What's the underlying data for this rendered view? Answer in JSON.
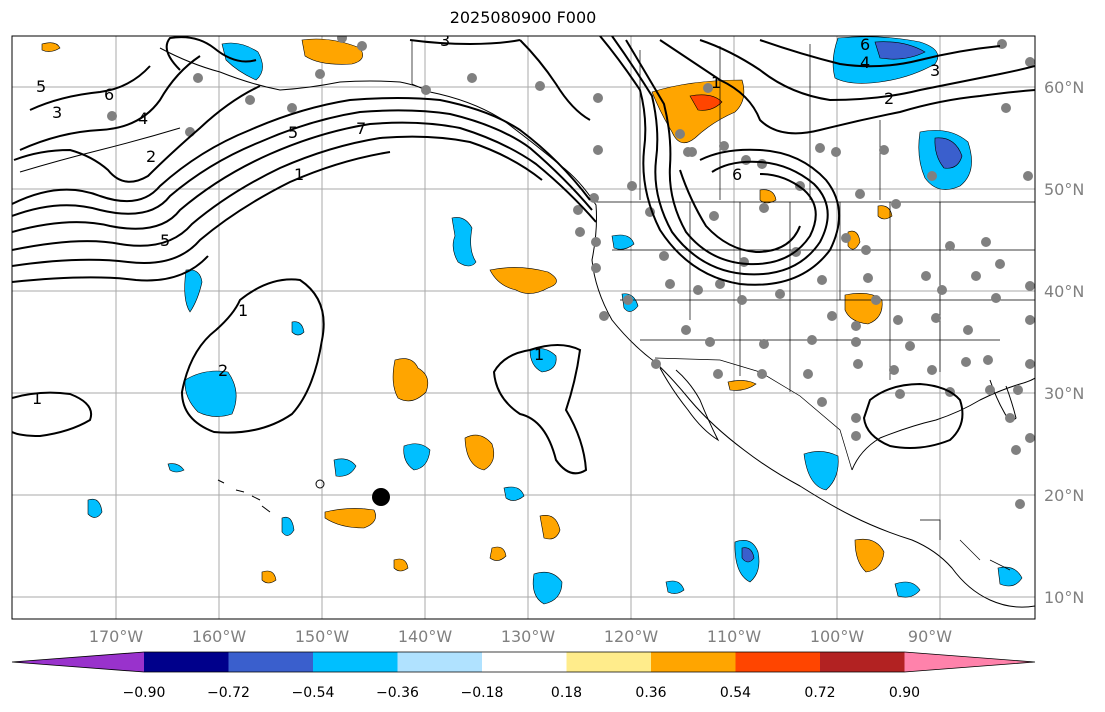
{
  "title": "2025080900 F000",
  "lon_labels": [
    "170°W",
    "160°W",
    "150°W",
    "140°W",
    "130°W",
    "120°W",
    "110°W",
    "100°W",
    "90°W"
  ],
  "lat_labels": [
    "60°N",
    "50°N",
    "40°N",
    "30°N",
    "20°N",
    "10°N"
  ],
  "colorbar": {
    "ticks": [
      "−0.90",
      "−0.72",
      "−0.54",
      "−0.36",
      "−0.18",
      "0.18",
      "0.36",
      "0.54",
      "0.72",
      "0.90"
    ],
    "colors": [
      "#9932cc",
      "#00008b",
      "#3a5fcd",
      "#00bfff",
      "#b0e2ff",
      "#ffffff",
      "#ffec8b",
      "#ffa500",
      "#ff4500",
      "#b22222",
      "#ff82ab"
    ]
  },
  "contours": [
    {
      "label": "5"
    },
    {
      "label": "3"
    },
    {
      "label": "6"
    },
    {
      "label": "4"
    },
    {
      "label": "2"
    },
    {
      "label": "7"
    },
    {
      "label": "1"
    },
    {
      "label": "1"
    },
    {
      "label": "2"
    },
    {
      "label": "1"
    },
    {
      "label": "6"
    },
    {
      "label": "1"
    },
    {
      "label": "2"
    },
    {
      "label": "3"
    },
    {
      "label": "4"
    },
    {
      "label": "6"
    },
    {
      "label": "5"
    },
    {
      "label": "3"
    },
    {
      "label": "5"
    },
    {
      "label": "1"
    }
  ]
}
